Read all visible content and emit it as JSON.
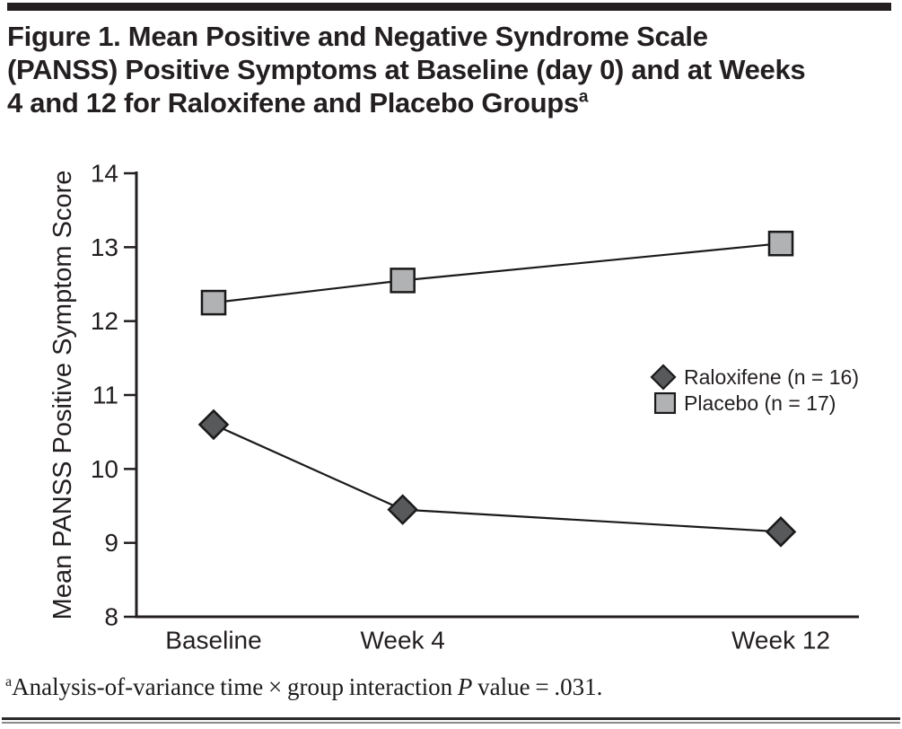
{
  "title": {
    "lines": [
      "Figure 1. Mean Positive and Negative Syndrome Scale",
      "(PANSS) Positive Symptoms at Baseline (day 0) and at Weeks",
      "4 and 12 for Raloxifene and Placebo Groups"
    ],
    "superscript": "a"
  },
  "chart_data": {
    "type": "line",
    "title": "Figure 1. Mean Positive and Negative Syndrome Scale (PANSS) Positive Symptoms at Baseline (day 0) and at Weeks 4 and 12 for Raloxifene and Placebo Groups",
    "categories": [
      "Baseline",
      "Week 4",
      "Week 12"
    ],
    "x": [
      0,
      4,
      12
    ],
    "series": [
      {
        "name": "Raloxifene (n = 16)",
        "marker": "diamond",
        "fill": "#58595b",
        "values": [
          10.6,
          9.45,
          9.15
        ]
      },
      {
        "name": "Placebo (n = 17)",
        "marker": "square",
        "fill": "#b1b2b4",
        "values": [
          12.25,
          12.55,
          13.05
        ]
      }
    ],
    "xlabel": "",
    "ylabel": "Mean PANSS Positive Symptom Score",
    "ylim": [
      8,
      14
    ],
    "yticks": [
      14,
      13,
      12,
      11,
      10,
      9,
      8
    ],
    "grid": false,
    "legend_position": "right-middle",
    "colors": {
      "line": "#1a1a1a",
      "axis": "#231f20",
      "text": "#231f20"
    }
  },
  "footnote": {
    "marker": "a",
    "part1": "Analysis-of-variance time × group interaction ",
    "p_symbol": "P",
    "part2": " value = .031."
  }
}
